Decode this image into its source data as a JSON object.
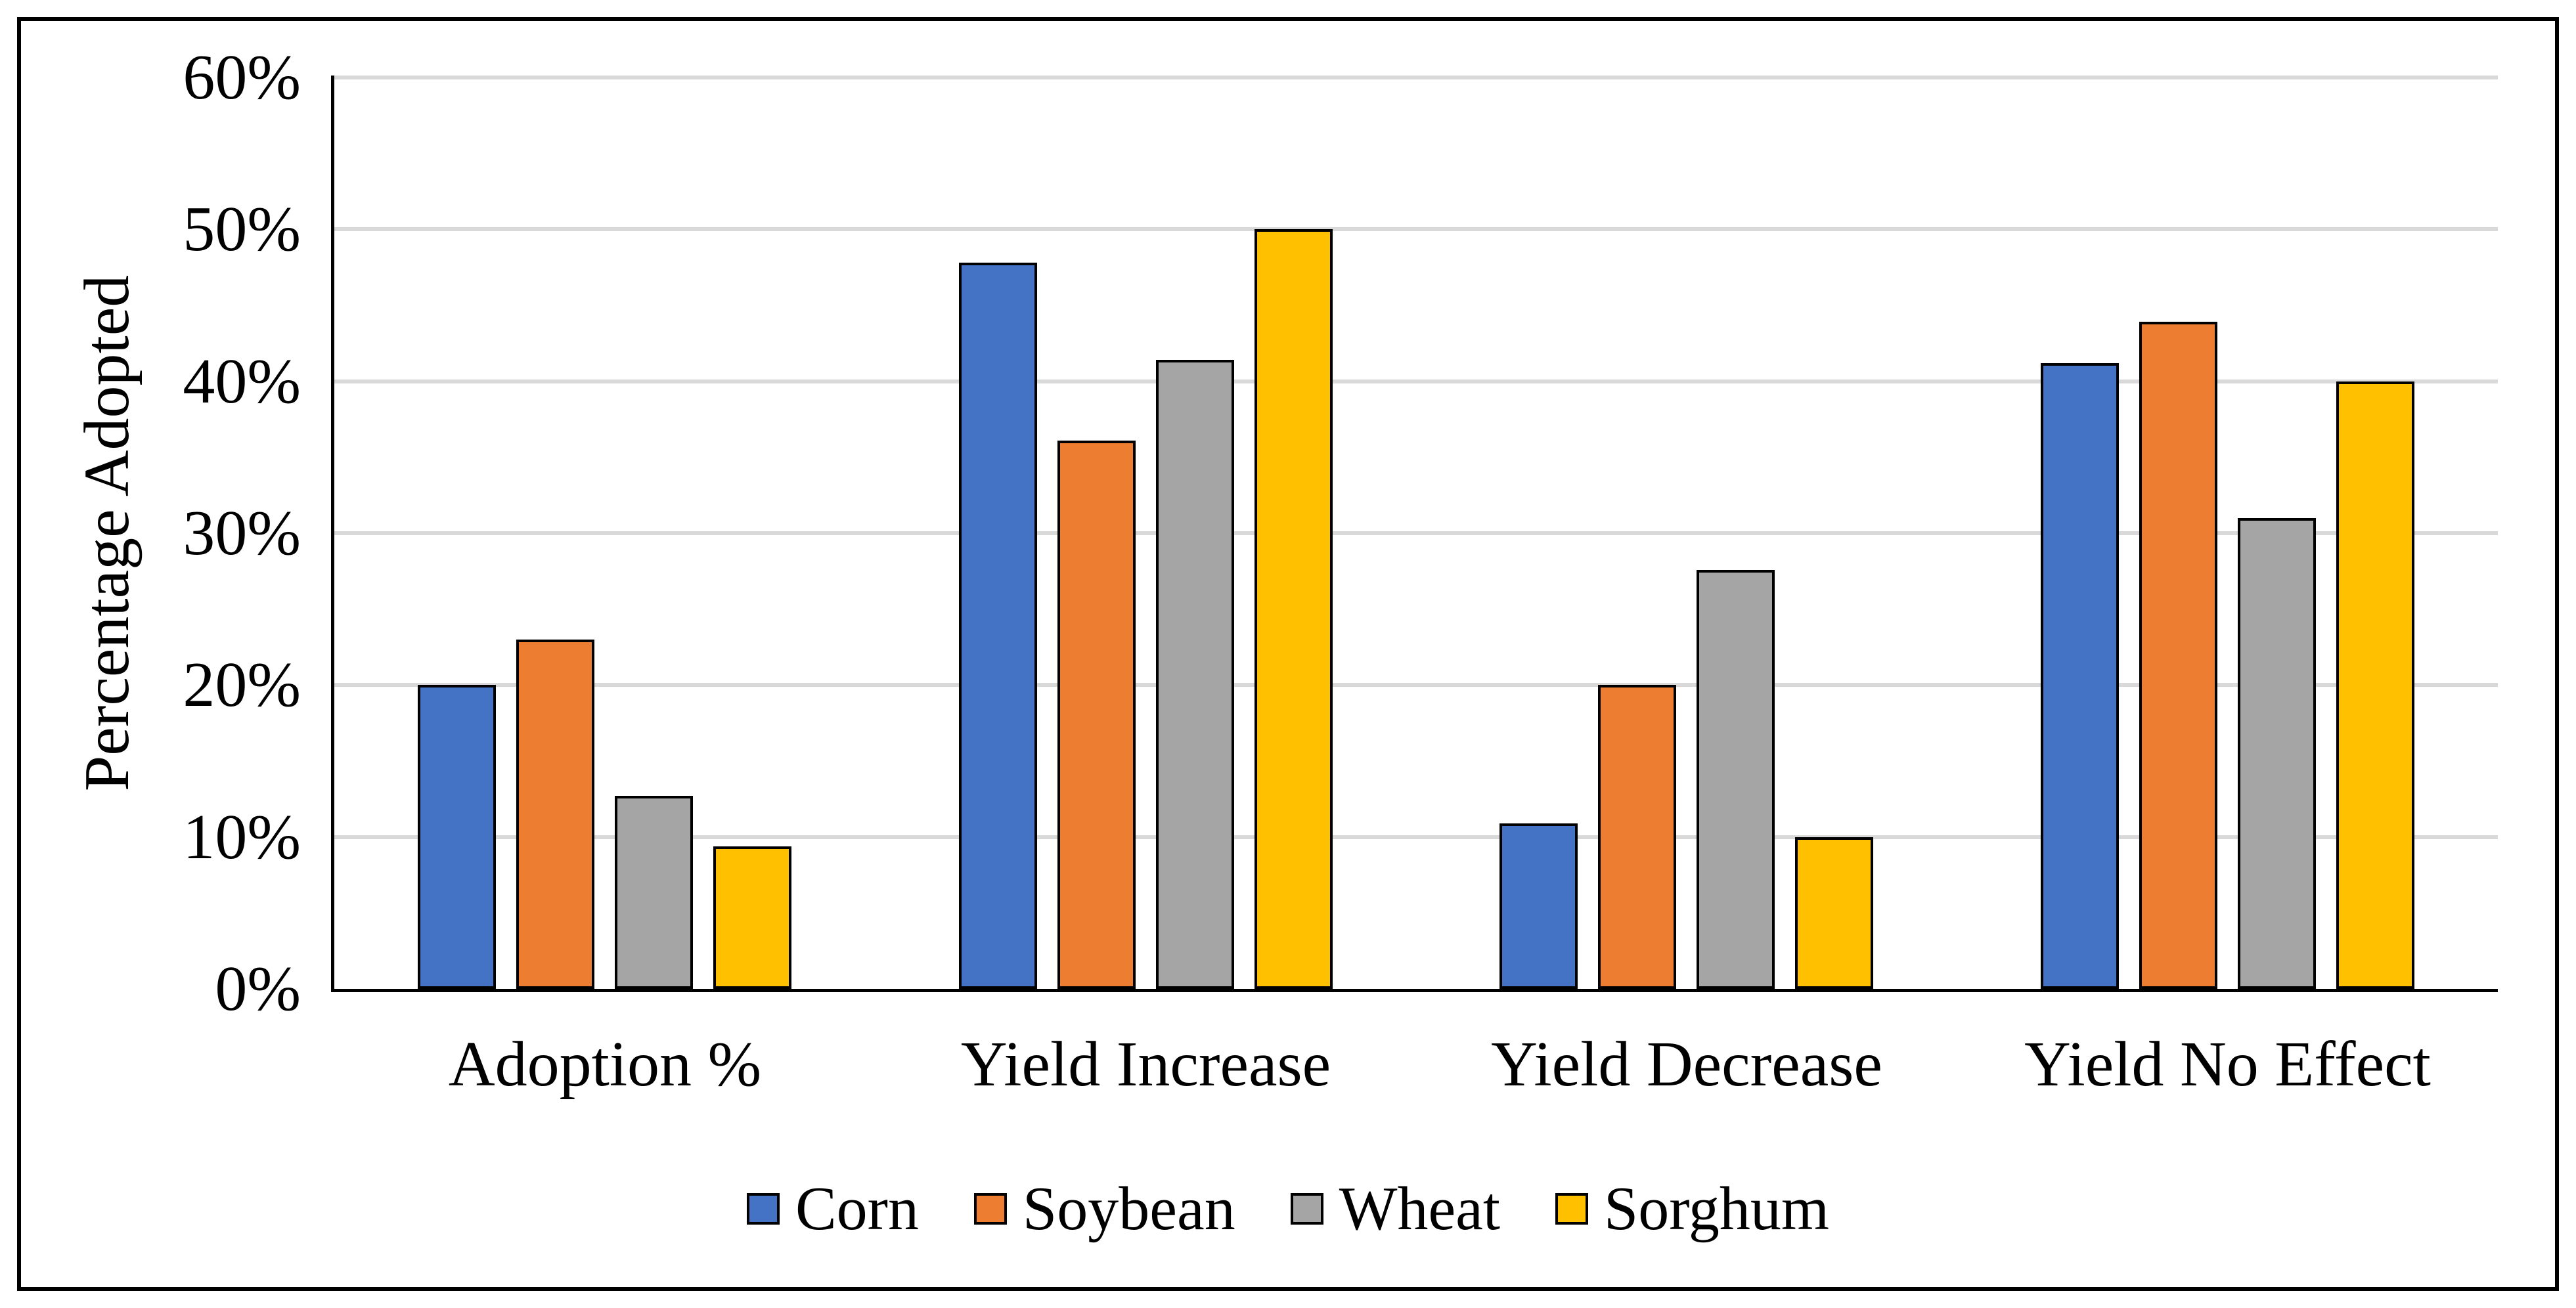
{
  "chart_data": {
    "type": "bar",
    "title": "",
    "categories": [
      "Adoption %",
      "Yield Increase",
      "Yield Decrease",
      "Yield No Effect"
    ],
    "series": [
      {
        "name": "Corn",
        "color": "#4472C4",
        "values": [
          20.0,
          47.8,
          10.9,
          41.2
        ]
      },
      {
        "name": "Soybean",
        "color": "#ED7D31",
        "values": [
          23.0,
          36.1,
          20.0,
          43.9
        ]
      },
      {
        "name": "Wheat",
        "color": "#A5A5A5",
        "values": [
          12.7,
          41.4,
          27.6,
          31.0
        ]
      },
      {
        "name": "Sorghum",
        "color": "#FFC000",
        "values": [
          9.4,
          50.0,
          10.0,
          40.0
        ]
      }
    ],
    "xlabel": "",
    "ylabel": "Percentage Adopted",
    "ylim": [
      0,
      60
    ],
    "ytick_step": 10,
    "yticks": [
      "0%",
      "10%",
      "20%",
      "30%",
      "40%",
      "50%",
      "60%"
    ],
    "grid": true,
    "gridline_color": "#D9D9D9",
    "axis_color": "#000000",
    "bar_outline_color": "#000000",
    "legend_position": "bottom",
    "legend": [
      "Corn",
      "Soybean",
      "Wheat",
      "Sorghum"
    ]
  }
}
